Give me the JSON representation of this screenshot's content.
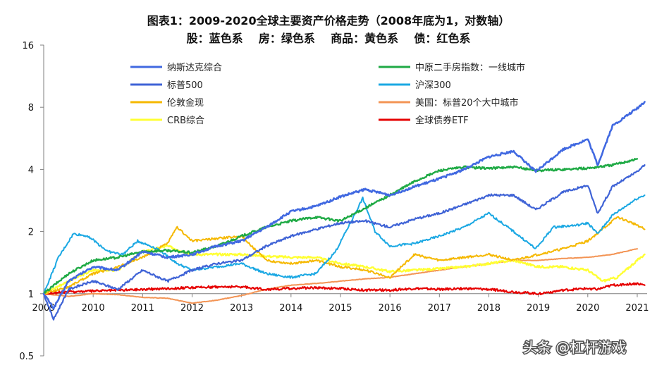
{
  "chart_data": {
    "type": "line",
    "title": "图表1：2009-2020全球主要资产价格走势（2008年底为1，对数轴）",
    "subtitle": "股：蓝色系    房：绿色系    商品：黄色系    债：红色系",
    "y_scale": "log2",
    "ylim": [
      0.5,
      16
    ],
    "y_ticks": [
      "0.5",
      "1",
      "2",
      "4",
      "8",
      "16"
    ],
    "xlim": [
      2009,
      2021.2
    ],
    "x_ticks": [
      "2009",
      "2010",
      "2011",
      "2012",
      "2013",
      "2014",
      "2015",
      "2016",
      "2017",
      "2018",
      "2019",
      "2020",
      "2021"
    ],
    "legend_position": "top",
    "series": [
      {
        "name": "纳斯达克综合",
        "color": "#4169E1",
        "width": 2.6,
        "points": [
          [
            2009,
            1.0
          ],
          [
            2009.2,
            0.85
          ],
          [
            2009.5,
            1.15
          ],
          [
            2010,
            1.35
          ],
          [
            2010.5,
            1.3
          ],
          [
            2011,
            1.6
          ],
          [
            2011.5,
            1.5
          ],
          [
            2012,
            1.55
          ],
          [
            2012.5,
            1.7
          ],
          [
            2013,
            1.8
          ],
          [
            2013.5,
            2.1
          ],
          [
            2014,
            2.5
          ],
          [
            2014.5,
            2.65
          ],
          [
            2015,
            2.95
          ],
          [
            2015.5,
            3.2
          ],
          [
            2016,
            3.0
          ],
          [
            2016.5,
            3.3
          ],
          [
            2017,
            3.6
          ],
          [
            2017.5,
            4.0
          ],
          [
            2018,
            4.6
          ],
          [
            2018.5,
            4.9
          ],
          [
            2018.95,
            3.9
          ],
          [
            2019.5,
            5.0
          ],
          [
            2020,
            5.6
          ],
          [
            2020.2,
            4.2
          ],
          [
            2020.5,
            6.5
          ],
          [
            2021,
            7.9
          ],
          [
            2021.15,
            8.5
          ]
        ]
      },
      {
        "name": "中原二手房指数：一线城市",
        "color": "#1FAA45",
        "width": 2.4,
        "points": [
          [
            2009,
            1.0
          ],
          [
            2009.5,
            1.25
          ],
          [
            2010,
            1.45
          ],
          [
            2010.5,
            1.5
          ],
          [
            2011,
            1.6
          ],
          [
            2011.5,
            1.62
          ],
          [
            2012,
            1.58
          ],
          [
            2012.5,
            1.7
          ],
          [
            2013,
            1.9
          ],
          [
            2013.5,
            2.1
          ],
          [
            2014,
            2.25
          ],
          [
            2014.5,
            2.35
          ],
          [
            2015,
            2.25
          ],
          [
            2015.5,
            2.6
          ],
          [
            2016,
            3.0
          ],
          [
            2016.5,
            3.5
          ],
          [
            2017,
            3.95
          ],
          [
            2017.5,
            4.1
          ],
          [
            2018,
            4.05
          ],
          [
            2018.5,
            4.1
          ],
          [
            2019,
            3.95
          ],
          [
            2019.5,
            4.0
          ],
          [
            2020,
            4.05
          ],
          [
            2020.5,
            4.2
          ],
          [
            2021,
            4.5
          ]
        ]
      },
      {
        "name": "标普500",
        "color": "#3F63D6",
        "width": 2.2,
        "points": [
          [
            2009,
            1.0
          ],
          [
            2009.2,
            0.75
          ],
          [
            2009.5,
            1.05
          ],
          [
            2010,
            1.15
          ],
          [
            2010.5,
            1.05
          ],
          [
            2011,
            1.3
          ],
          [
            2011.5,
            1.15
          ],
          [
            2012,
            1.3
          ],
          [
            2012.5,
            1.4
          ],
          [
            2013,
            1.45
          ],
          [
            2013.5,
            1.7
          ],
          [
            2014,
            1.9
          ],
          [
            2014.5,
            2.05
          ],
          [
            2015,
            2.2
          ],
          [
            2015.5,
            2.25
          ],
          [
            2016,
            2.1
          ],
          [
            2016.5,
            2.3
          ],
          [
            2017,
            2.45
          ],
          [
            2017.5,
            2.7
          ],
          [
            2018,
            3.0
          ],
          [
            2018.5,
            3.0
          ],
          [
            2018.95,
            2.55
          ],
          [
            2019.5,
            3.1
          ],
          [
            2020,
            3.35
          ],
          [
            2020.2,
            2.45
          ],
          [
            2020.5,
            3.3
          ],
          [
            2021,
            3.9
          ],
          [
            2021.15,
            4.2
          ]
        ]
      },
      {
        "name": "沪深300",
        "color": "#1BA8E3",
        "width": 2.0,
        "points": [
          [
            2009,
            1.0
          ],
          [
            2009.3,
            1.5
          ],
          [
            2009.6,
            1.95
          ],
          [
            2009.9,
            1.9
          ],
          [
            2010.3,
            1.6
          ],
          [
            2010.6,
            1.55
          ],
          [
            2010.9,
            1.8
          ],
          [
            2011.3,
            1.65
          ],
          [
            2011.7,
            1.4
          ],
          [
            2012,
            1.3
          ],
          [
            2012.5,
            1.35
          ],
          [
            2013,
            1.4
          ],
          [
            2013.5,
            1.25
          ],
          [
            2014,
            1.2
          ],
          [
            2014.5,
            1.25
          ],
          [
            2014.9,
            1.6
          ],
          [
            2015.2,
            2.2
          ],
          [
            2015.45,
            2.9
          ],
          [
            2015.7,
            2.0
          ],
          [
            2016,
            1.7
          ],
          [
            2016.5,
            1.75
          ],
          [
            2017,
            1.9
          ],
          [
            2017.5,
            2.1
          ],
          [
            2018,
            2.45
          ],
          [
            2018.5,
            2.0
          ],
          [
            2018.95,
            1.65
          ],
          [
            2019.3,
            2.1
          ],
          [
            2019.8,
            2.15
          ],
          [
            2020,
            2.2
          ],
          [
            2020.2,
            1.95
          ],
          [
            2020.5,
            2.4
          ],
          [
            2021,
            2.9
          ],
          [
            2021.15,
            3.0
          ]
        ]
      },
      {
        "name": "伦敦金现",
        "color": "#F5B800",
        "width": 2.0,
        "points": [
          [
            2009,
            1.0
          ],
          [
            2009.5,
            1.08
          ],
          [
            2010,
            1.25
          ],
          [
            2010.5,
            1.35
          ],
          [
            2011,
            1.5
          ],
          [
            2011.5,
            1.75
          ],
          [
            2011.7,
            2.1
          ],
          [
            2012,
            1.8
          ],
          [
            2012.5,
            1.85
          ],
          [
            2013,
            1.9
          ],
          [
            2013.5,
            1.45
          ],
          [
            2014,
            1.4
          ],
          [
            2014.5,
            1.45
          ],
          [
            2015,
            1.35
          ],
          [
            2015.5,
            1.3
          ],
          [
            2016,
            1.2
          ],
          [
            2016.5,
            1.55
          ],
          [
            2017,
            1.45
          ],
          [
            2017.5,
            1.5
          ],
          [
            2018,
            1.55
          ],
          [
            2018.5,
            1.45
          ],
          [
            2019,
            1.55
          ],
          [
            2019.5,
            1.65
          ],
          [
            2020,
            1.8
          ],
          [
            2020.6,
            2.35
          ],
          [
            2021,
            2.15
          ],
          [
            2021.15,
            2.05
          ]
        ]
      },
      {
        "name": "美国：标普20个大中城市",
        "color": "#F39454",
        "width": 2.0,
        "points": [
          [
            2009,
            1.0
          ],
          [
            2009.5,
            0.97
          ],
          [
            2010,
            1.0
          ],
          [
            2010.5,
            0.99
          ],
          [
            2011,
            0.96
          ],
          [
            2011.5,
            0.95
          ],
          [
            2012,
            0.9
          ],
          [
            2012.5,
            0.93
          ],
          [
            2013,
            0.98
          ],
          [
            2013.5,
            1.05
          ],
          [
            2014,
            1.1
          ],
          [
            2014.5,
            1.12
          ],
          [
            2015,
            1.15
          ],
          [
            2015.5,
            1.18
          ],
          [
            2016,
            1.2
          ],
          [
            2016.5,
            1.25
          ],
          [
            2017,
            1.3
          ],
          [
            2017.5,
            1.35
          ],
          [
            2018,
            1.4
          ],
          [
            2018.5,
            1.45
          ],
          [
            2019,
            1.45
          ],
          [
            2019.5,
            1.48
          ],
          [
            2020,
            1.5
          ],
          [
            2020.5,
            1.55
          ],
          [
            2021,
            1.65
          ]
        ]
      },
      {
        "name": "CRB综合",
        "color": "#FFFF33",
        "width": 2.4,
        "points": [
          [
            2009,
            1.0
          ],
          [
            2009.5,
            1.15
          ],
          [
            2010,
            1.3
          ],
          [
            2010.5,
            1.3
          ],
          [
            2011,
            1.6
          ],
          [
            2011.5,
            1.7
          ],
          [
            2012,
            1.55
          ],
          [
            2012.5,
            1.55
          ],
          [
            2013,
            1.55
          ],
          [
            2013.5,
            1.52
          ],
          [
            2014,
            1.5
          ],
          [
            2014.5,
            1.5
          ],
          [
            2015,
            1.4
          ],
          [
            2015.5,
            1.35
          ],
          [
            2016,
            1.28
          ],
          [
            2016.5,
            1.3
          ],
          [
            2017,
            1.32
          ],
          [
            2017.5,
            1.35
          ],
          [
            2018,
            1.4
          ],
          [
            2018.5,
            1.45
          ],
          [
            2019,
            1.35
          ],
          [
            2019.5,
            1.35
          ],
          [
            2020,
            1.3
          ],
          [
            2020.3,
            1.15
          ],
          [
            2020.6,
            1.2
          ],
          [
            2021,
            1.45
          ],
          [
            2021.15,
            1.55
          ]
        ]
      },
      {
        "name": "全球债券ETF",
        "color": "#E60000",
        "width": 2.2,
        "points": [
          [
            2009,
            1.0
          ],
          [
            2009.5,
            1.02
          ],
          [
            2010,
            1.03
          ],
          [
            2010.5,
            1.04
          ],
          [
            2011,
            1.05
          ],
          [
            2011.5,
            1.06
          ],
          [
            2012,
            1.07
          ],
          [
            2012.5,
            1.08
          ],
          [
            2013,
            1.08
          ],
          [
            2013.5,
            1.05
          ],
          [
            2014,
            1.06
          ],
          [
            2014.5,
            1.07
          ],
          [
            2015,
            1.06
          ],
          [
            2015.5,
            1.04
          ],
          [
            2016,
            1.04
          ],
          [
            2016.5,
            1.06
          ],
          [
            2017,
            1.05
          ],
          [
            2017.5,
            1.06
          ],
          [
            2018,
            1.05
          ],
          [
            2018.5,
            1.02
          ],
          [
            2019,
            1.0
          ],
          [
            2019.5,
            1.04
          ],
          [
            2020,
            1.06
          ],
          [
            2020.2,
            1.05
          ],
          [
            2020.5,
            1.1
          ],
          [
            2021,
            1.12
          ],
          [
            2021.15,
            1.1
          ]
        ]
      }
    ]
  },
  "watermark": "头条 @杠杆游戏"
}
